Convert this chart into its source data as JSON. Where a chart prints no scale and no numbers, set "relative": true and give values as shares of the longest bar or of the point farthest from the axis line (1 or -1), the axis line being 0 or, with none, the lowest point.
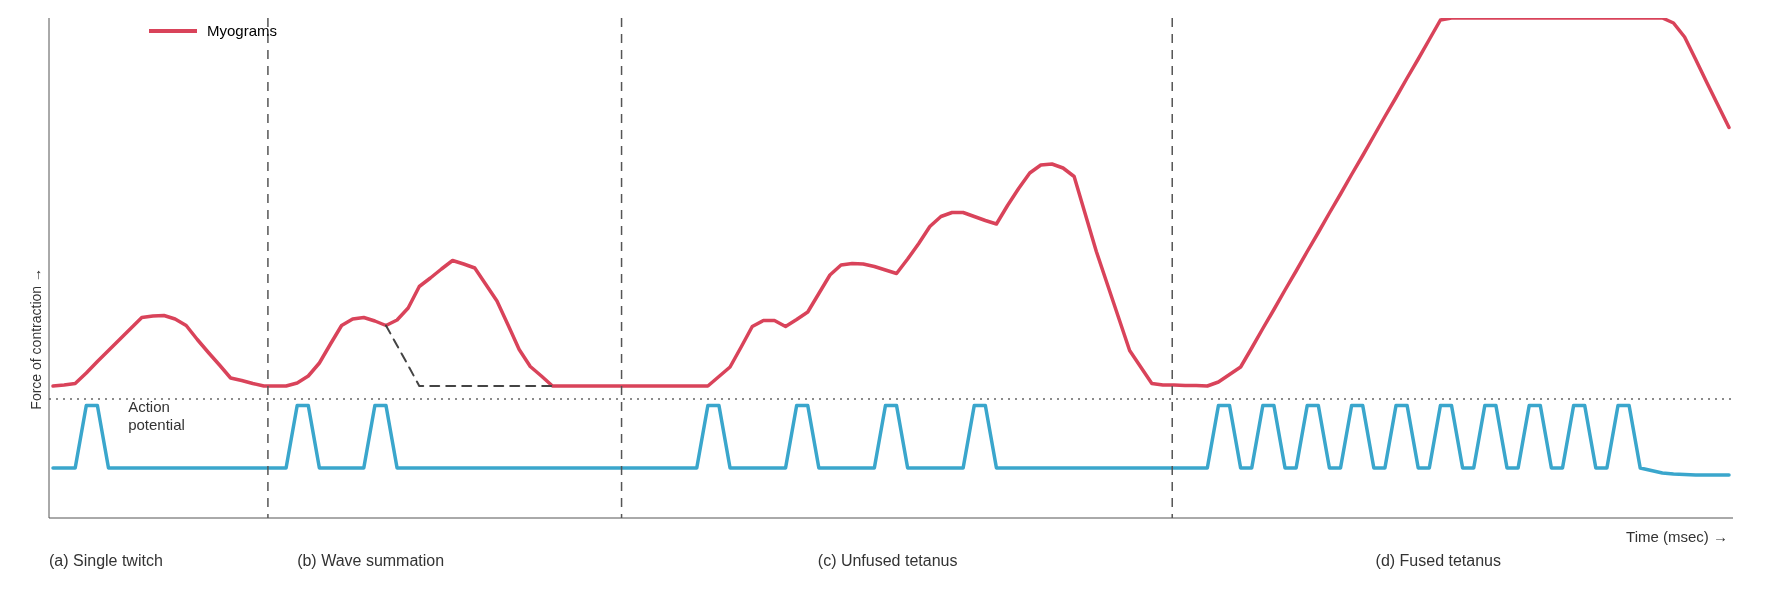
{
  "chart_data": {
    "type": "line",
    "relative": true,
    "xlabel": "Time (msec) →",
    "ylabel": "Force of contraction →",
    "grid": false,
    "legend": "top left",
    "marker": "none",
    "categories": [
      null,
      null,
      null,
      null,
      null,
      null,
      null,
      null,
      null,
      null,
      null,
      null,
      null,
      null,
      null,
      null,
      null,
      null,
      null,
      null,
      null,
      null,
      null,
      null,
      null,
      null,
      null,
      null,
      null,
      null,
      null,
      null,
      null,
      null,
      null,
      null,
      null,
      null,
      null,
      null,
      null,
      null,
      null,
      null,
      null,
      null,
      null,
      null,
      null,
      null,
      null,
      null,
      null,
      null,
      null,
      null,
      null,
      null,
      null,
      null,
      null,
      null,
      null,
      null,
      null,
      null,
      null,
      null,
      null,
      null,
      null,
      null,
      null,
      null,
      null,
      null,
      null,
      null,
      null,
      null,
      null,
      null,
      null,
      null,
      null,
      null,
      null,
      null,
      null,
      null,
      null,
      null,
      null,
      null,
      null,
      null,
      null,
      null,
      null,
      null,
      null,
      null,
      null,
      null,
      null,
      null,
      null,
      null,
      null,
      null,
      null,
      null,
      null,
      null,
      null,
      null,
      null,
      null,
      null,
      null,
      null,
      null,
      null,
      null,
      null,
      null,
      null,
      null,
      null,
      null,
      null,
      null,
      null,
      null,
      null,
      null,
      null,
      null,
      null,
      null,
      null,
      null,
      null,
      null,
      null,
      null,
      null,
      null,
      null,
      null,
      null,
      null
    ],
    "series": [
      {
        "name": "Myograms",
        "color": "#d9435a",
        "values": [
          0.264,
          0.266,
          0.269,
          0.29,
          0.313,
          0.335,
          0.357,
          0.379,
          0.401,
          0.404,
          0.405,
          0.398,
          0.385,
          0.357,
          0.331,
          0.306,
          0.28,
          0.275,
          0.269,
          0.264,
          0.264,
          0.264,
          0.27,
          0.284,
          0.31,
          0.348,
          0.385,
          0.398,
          0.401,
          0.394,
          0.385,
          0.396,
          0.42,
          0.463,
          0.48,
          0.498,
          0.515,
          0.508,
          0.5,
          0.467,
          0.434,
          0.386,
          0.337,
          0.303,
          0.284,
          0.264,
          0.264,
          0.264,
          0.264,
          0.264,
          0.264,
          0.264,
          0.264,
          0.264,
          0.264,
          0.264,
          0.264,
          0.264,
          0.264,
          0.264,
          0.283,
          0.302,
          0.342,
          0.383,
          0.395,
          0.395,
          0.383,
          0.397,
          0.412,
          0.449,
          0.486,
          0.506,
          0.509,
          0.508,
          0.503,
          0.496,
          0.489,
          0.518,
          0.549,
          0.583,
          0.603,
          0.611,
          0.611,
          0.603,
          0.595,
          0.588,
          0.625,
          0.659,
          0.69,
          0.706,
          0.708,
          0.7,
          0.683,
          0.608,
          0.533,
          0.467,
          0.401,
          0.335,
          0.302,
          0.269,
          0.266,
          0.266,
          0.265,
          0.265,
          0.264,
          0.272,
          0.287,
          0.302,
          0.34,
          0.379,
          0.417,
          0.456,
          0.494,
          0.533,
          0.571,
          0.61,
          0.648,
          0.687,
          0.725,
          0.764,
          0.803,
          0.841,
          0.88,
          0.918,
          0.957,
          0.996,
          1,
          1,
          1,
          1,
          1,
          1,
          1,
          1,
          1,
          1,
          1,
          1,
          1,
          1,
          1,
          1,
          1,
          1,
          1,
          1,
          0.99,
          0.962,
          0.917,
          0.871,
          0.826,
          0.781
        ]
      },
      {
        "color": "#3aa6cc",
        "values": [
          0.1,
          0.1,
          0.1,
          0.225,
          0.225,
          0.1,
          0.1,
          0.1,
          0.1,
          0.1,
          0.1,
          0.1,
          0.1,
          0.1,
          0.1,
          0.1,
          0.1,
          0.1,
          0.1,
          0.1,
          0.1,
          0.1,
          0.225,
          0.225,
          0.1,
          0.1,
          0.1,
          0.1,
          0.1,
          0.225,
          0.225,
          0.1,
          0.1,
          0.1,
          0.1,
          0.1,
          0.1,
          0.1,
          0.1,
          0.1,
          0.1,
          0.1,
          0.1,
          0.1,
          0.1,
          0.1,
          0.1,
          0.1,
          0.1,
          0.1,
          0.1,
          0.1,
          0.1,
          0.1,
          0.1,
          0.1,
          0.1,
          0.1,
          0.1,
          0.225,
          0.225,
          0.1,
          0.1,
          0.1,
          0.1,
          0.1,
          0.1,
          0.225,
          0.225,
          0.1,
          0.1,
          0.1,
          0.1,
          0.1,
          0.1,
          0.225,
          0.225,
          0.1,
          0.1,
          0.1,
          0.1,
          0.1,
          0.1,
          0.225,
          0.225,
          0.1,
          0.1,
          0.1,
          0.1,
          0.1,
          0.1,
          0.1,
          0.1,
          0.1,
          0.1,
          0.1,
          0.1,
          0.1,
          0.1,
          0.1,
          0.1,
          0.1,
          0.1,
          0.1,
          0.1,
          0.225,
          0.225,
          0.1,
          0.1,
          0.225,
          0.225,
          0.1,
          0.1,
          0.225,
          0.225,
          0.1,
          0.1,
          0.225,
          0.225,
          0.1,
          0.1,
          0.225,
          0.225,
          0.1,
          0.1,
          0.225,
          0.225,
          0.1,
          0.1,
          0.225,
          0.225,
          0.1,
          0.1,
          0.225,
          0.225,
          0.1,
          0.1,
          0.225,
          0.225,
          0.1,
          0.1,
          0.225,
          0.225,
          0.1,
          0.095,
          0.09,
          0.088,
          0.087,
          0.086,
          0.086,
          0.086,
          0.086
        ]
      },
      {
        "color": "#444444",
        "line_style": "dashed",
        "values": [
          null,
          null,
          null,
          null,
          null,
          null,
          null,
          null,
          null,
          null,
          null,
          null,
          null,
          null,
          null,
          null,
          null,
          null,
          null,
          null,
          null,
          null,
          null,
          null,
          null,
          null,
          null,
          null,
          null,
          null,
          0.385,
          0.345,
          0.305,
          0.264,
          0.264,
          0.264,
          0.264,
          0.264,
          0.264,
          0.264,
          0.264,
          0.264,
          0.264,
          0.264,
          0.264,
          0.264,
          null,
          null,
          null,
          null,
          null,
          null,
          null,
          null,
          null,
          null,
          null,
          null,
          null,
          null,
          null,
          null,
          null,
          null,
          null,
          null,
          null,
          null,
          null,
          null,
          null,
          null,
          null,
          null,
          null,
          null,
          null,
          null,
          null,
          null,
          null,
          null,
          null,
          null,
          null,
          null,
          null,
          null,
          null,
          null,
          null,
          null,
          null,
          null,
          null,
          null,
          null,
          null,
          null,
          null,
          null,
          null,
          null,
          null,
          null,
          null,
          null,
          null,
          null,
          null,
          null,
          null,
          null,
          null,
          null,
          null,
          null,
          null,
          null,
          null,
          null,
          null,
          null,
          null,
          null,
          null,
          null,
          null,
          null,
          null,
          null,
          null,
          null,
          null,
          null,
          null,
          null,
          null,
          null,
          null,
          null,
          null,
          null,
          null,
          null,
          null,
          null,
          null,
          null,
          null,
          null,
          null
        ]
      }
    ],
    "ref_lines": [
      {
        "axis": "y",
        "value": 0.238,
        "color": "#666666",
        "line_style": "dotted"
      }
    ],
    "annotations": [
      "Action potential",
      "(a) Single twitch",
      "(b) Wave summation",
      "(c) Unfused tetanus",
      "(d) Fused tetanus"
    ]
  }
}
